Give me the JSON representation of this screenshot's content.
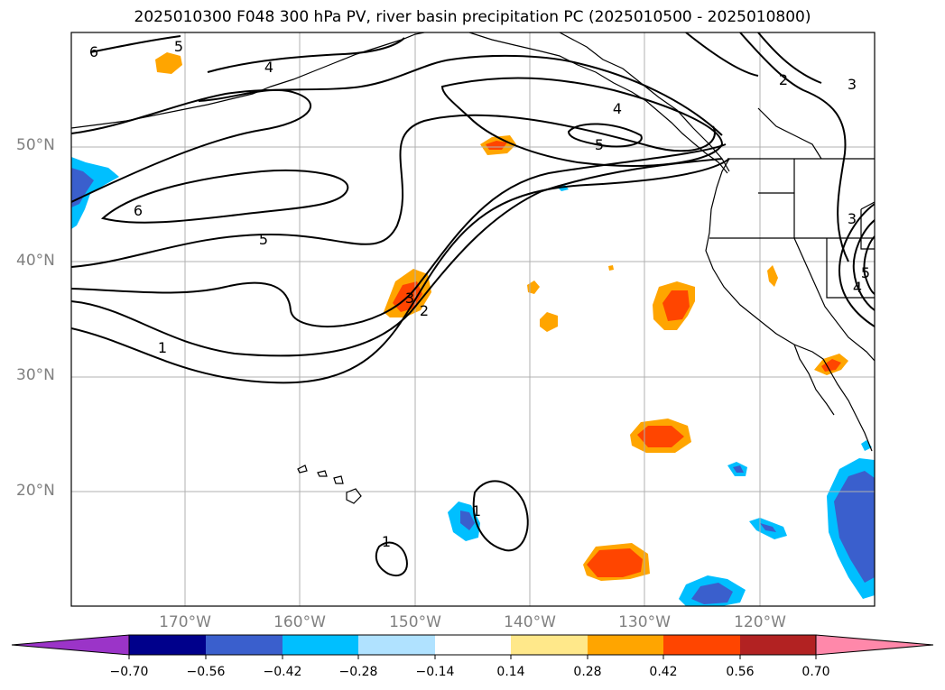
{
  "title": "2025010300 F048 300 hPa PV, river basin precipitation PC (2025010500 - 2025010800)",
  "map": {
    "projection": "plate-carree",
    "lon_range": [
      -180,
      -110
    ],
    "lat_range": [
      10,
      60
    ],
    "grid": true,
    "lat_labels": [
      "50°N",
      "40°N",
      "30°N",
      "20°N"
    ],
    "lon_labels": [
      "170°W",
      "160°W",
      "150°W",
      "140°W",
      "130°W",
      "120°W"
    ],
    "contour_variable": "300 hPa PV",
    "contour_labels": [
      "6",
      "5",
      "4",
      "6",
      "5",
      "5",
      "4",
      "3",
      "2",
      "1",
      "2",
      "3",
      "3",
      "5",
      "4",
      "1",
      "1"
    ]
  },
  "colorbar": {
    "ticks": [
      "−0.70",
      "−0.56",
      "−0.42",
      "−0.28",
      "−0.14",
      "0.14",
      "0.28",
      "0.42",
      "0.56",
      "0.70"
    ],
    "colors": [
      "#9b34c8",
      "#00008b",
      "#3a5fcd",
      "#00bfff",
      "#b0e2ff",
      "#ffffff",
      "#ffe88a",
      "#ffa500",
      "#ff4500",
      "#b22222",
      "#ff88aa"
    ],
    "extend": "both"
  }
}
